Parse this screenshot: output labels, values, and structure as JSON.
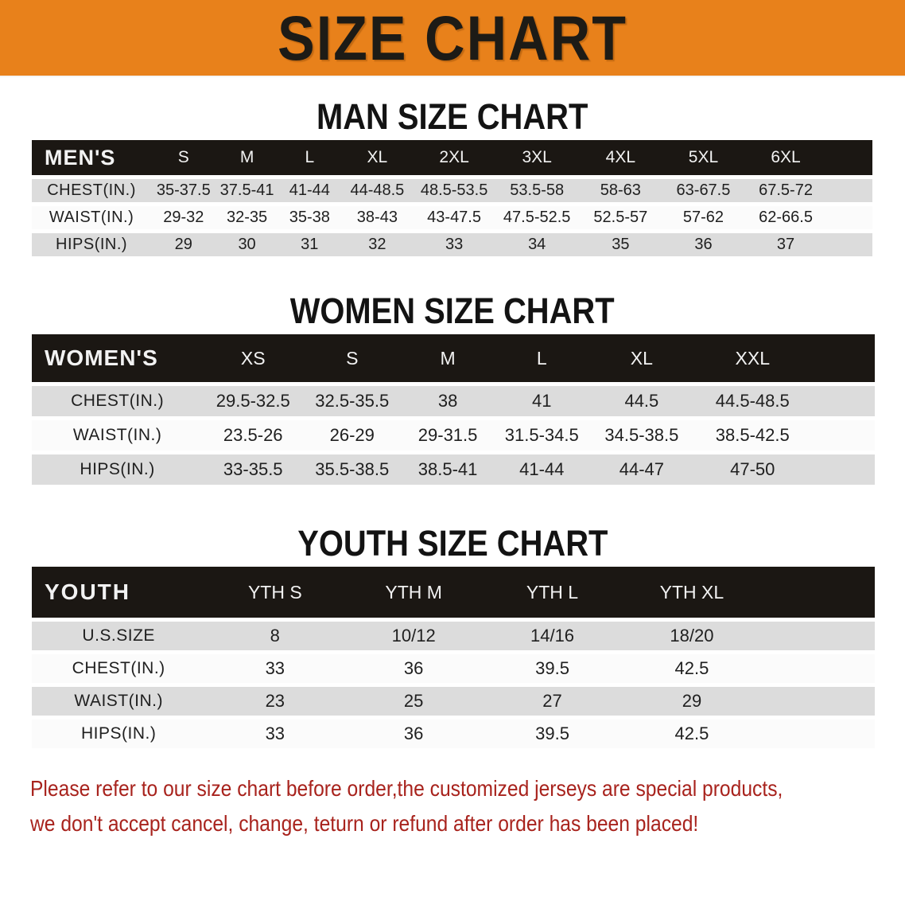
{
  "banner": {
    "title": "SIZE CHART"
  },
  "colors": {
    "banner_bg": "#E8811B",
    "table_header_bg": "#1B1713",
    "row_stripe_gray": "#DCDCDC",
    "row_stripe_white": "#FBFBFB",
    "disclaimer_red": "#A8231D"
  },
  "sections": [
    {
      "title": "MAN SIZE CHART",
      "header_label": "MEN'S",
      "columns": [
        "S",
        "M",
        "L",
        "XL",
        "2XL",
        "3XL",
        "4XL",
        "5XL",
        "6XL"
      ],
      "rows": [
        {
          "label": "CHEST(IN.)",
          "values": [
            "35-37.5",
            "37.5-41",
            "41-44",
            "44-48.5",
            "48.5-53.5",
            "53.5-58",
            "58-63",
            "63-67.5",
            "67.5-72"
          ]
        },
        {
          "label": "WAIST(IN.)",
          "values": [
            "29-32",
            "32-35",
            "35-38",
            "38-43",
            "43-47.5",
            "47.5-52.5",
            "52.5-57",
            "57-62",
            "62-66.5"
          ]
        },
        {
          "label": "HIPS(IN.)",
          "values": [
            "29",
            "30",
            "31",
            "32",
            "33",
            "34",
            "35",
            "36",
            "37"
          ]
        }
      ]
    },
    {
      "title": "WOMEN SIZE CHART",
      "header_label": "WOMEN'S",
      "columns": [
        "XS",
        "S",
        "M",
        "L",
        "XL",
        "XXL"
      ],
      "rows": [
        {
          "label": "CHEST(IN.)",
          "values": [
            "29.5-32.5",
            "32.5-35.5",
            "38",
            "41",
            "44.5",
            "44.5-48.5"
          ]
        },
        {
          "label": "WAIST(IN.)",
          "values": [
            "23.5-26",
            "26-29",
            "29-31.5",
            "31.5-34.5",
            "34.5-38.5",
            "38.5-42.5"
          ]
        },
        {
          "label": "HIPS(IN.)",
          "values": [
            "33-35.5",
            "35.5-38.5",
            "38.5-41",
            "41-44",
            "44-47",
            "47-50"
          ]
        }
      ]
    },
    {
      "title": "YOUTH SIZE CHART",
      "header_label": "YOUTH",
      "columns": [
        "YTH S",
        "YTH M",
        "YTH L",
        "YTH XL"
      ],
      "rows": [
        {
          "label": "U.S.SIZE",
          "values": [
            "8",
            "10/12",
            "14/16",
            "18/20"
          ]
        },
        {
          "label": "CHEST(IN.)",
          "values": [
            "33",
            "36",
            "39.5",
            "42.5"
          ]
        },
        {
          "label": "WAIST(IN.)",
          "values": [
            "23",
            "25",
            "27",
            "29"
          ]
        },
        {
          "label": "HIPS(IN.)",
          "values": [
            "33",
            "36",
            "39.5",
            "42.5"
          ]
        }
      ]
    }
  ],
  "disclaimer": {
    "line1": "Please refer to our size chart before order,the customized jerseys are special products,",
    "line2": "we don't accept cancel, change, teturn or refund after order has been placed!"
  }
}
